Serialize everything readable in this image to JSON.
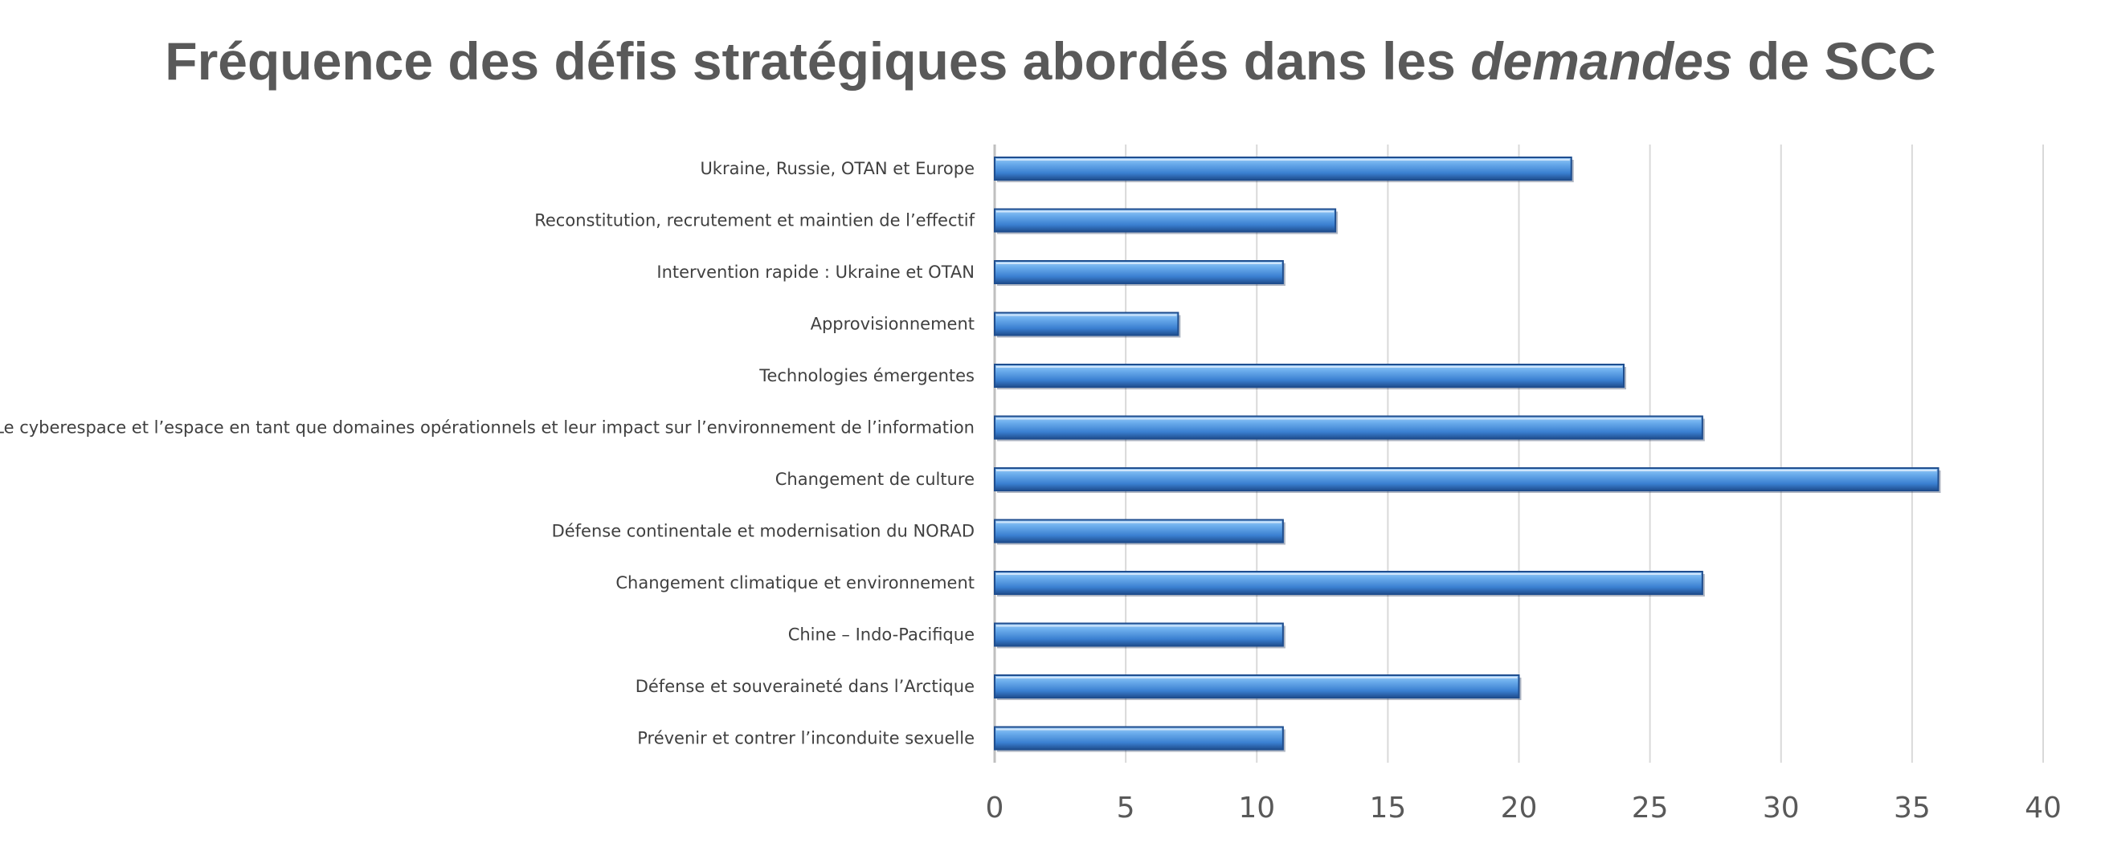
{
  "chart_data": {
    "type": "bar",
    "orientation": "horizontal",
    "title": {
      "before": "Fréquence des défis stratégiques abordés dans les ",
      "italic": "demandes",
      "after": " de SCC"
    },
    "categories": [
      "Ukraine, Russie, OTAN et Europe",
      "Reconstitution, recrutement et maintien de l’effectif",
      "Intervention rapide : Ukraine et OTAN",
      "Approvisionnement",
      "Technologies émergentes",
      "Le cyberespace et l’espace en tant que domaines opérationnels et leur impact sur l’environnement  de l’information",
      "Changement de culture",
      "Défense continentale et modernisation du NORAD",
      "Changement climatique et environnement",
      "Chine – Indo-Pacifique",
      "Défense et souveraineté dans l’Arctique",
      "Prévenir et contrer l’inconduite sexuelle"
    ],
    "values": [
      22,
      13,
      11,
      7,
      24,
      27,
      36,
      11,
      27,
      11,
      20,
      11
    ],
    "xlim": [
      0,
      40
    ],
    "xticks": [
      "0",
      "5",
      "10",
      "15",
      "20",
      "25",
      "30",
      "35",
      "40"
    ],
    "grid": "vertical",
    "legend": "none",
    "colors": {
      "bar_light": "#6fb0ee",
      "bar_mid": "#3a7fd0",
      "bar_dark": "#1f4e8f",
      "grid": "#d9d9d9",
      "axis": "#bfbfbf",
      "title": "#595959"
    }
  }
}
